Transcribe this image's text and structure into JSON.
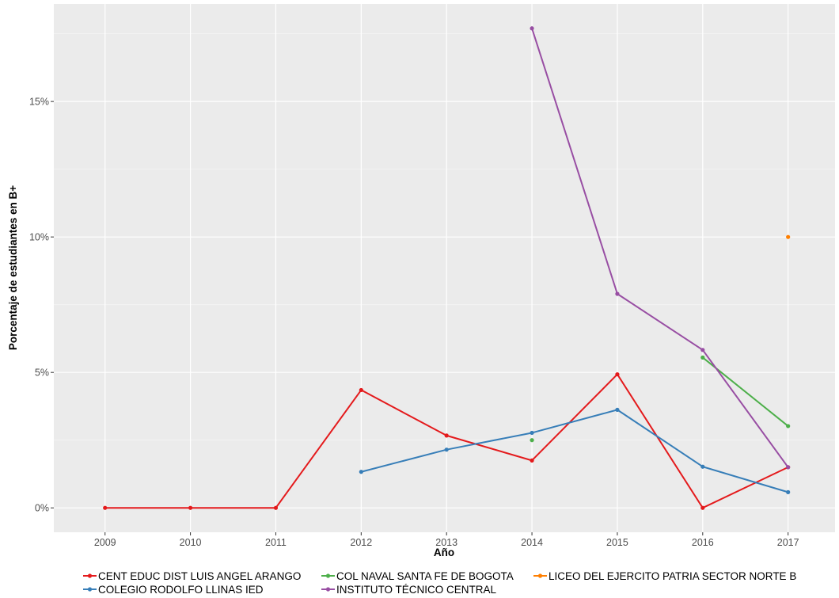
{
  "chart_data": {
    "type": "line",
    "title": "",
    "xlabel": "Año",
    "ylabel": "Porcentaje de estudiantes en B+",
    "x": [
      2009,
      2010,
      2011,
      2012,
      2013,
      2014,
      2015,
      2016,
      2017
    ],
    "x_tick_labels": [
      "2009",
      "2010",
      "2011",
      "2012",
      "2013",
      "2014",
      "2015",
      "2016",
      "2017"
    ],
    "xlim": [
      2008.4,
      2017.55
    ],
    "y_ticks": [
      0,
      5,
      10,
      15
    ],
    "y_tick_labels": [
      "0%",
      "5%",
      "10%",
      "15%"
    ],
    "ylim": [
      -0.9,
      18.6
    ],
    "grid": true,
    "legend_position": "bottom",
    "series": [
      {
        "name": "CENT EDUC DIST LUIS ANGEL ARANGO",
        "color": "#E41A1C",
        "values": [
          0,
          0,
          0,
          4.35,
          2.67,
          1.75,
          4.93,
          0,
          1.5
        ]
      },
      {
        "name": "COL NAVAL SANTA FE DE BOGOTA",
        "color": "#4DAF4A",
        "values": [
          null,
          null,
          null,
          null,
          null,
          2.5,
          null,
          5.55,
          3.02
        ]
      },
      {
        "name": "LICEO DEL EJERCITO PATRIA SECTOR NORTE B",
        "color": "#FF7F00",
        "values": [
          null,
          null,
          null,
          null,
          null,
          null,
          null,
          null,
          10.0
        ]
      },
      {
        "name": "COLEGIO RODOLFO LLINAS IED",
        "color": "#377EB8",
        "values": [
          null,
          null,
          null,
          1.33,
          2.15,
          2.77,
          3.62,
          1.52,
          0.58
        ]
      },
      {
        "name": "INSTITUTO TÉCNICO CENTRAL",
        "color": "#984EA3",
        "values": [
          null,
          null,
          null,
          null,
          null,
          17.7,
          7.9,
          5.83,
          1.5
        ]
      }
    ]
  }
}
